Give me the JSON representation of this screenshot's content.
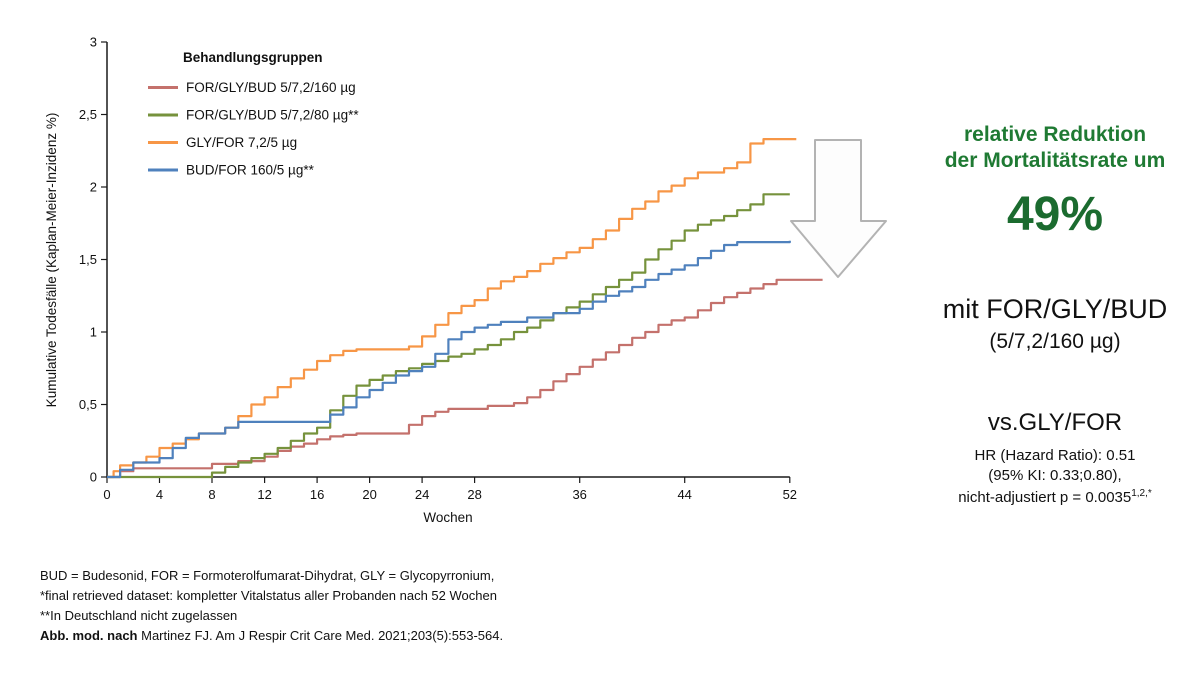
{
  "colors": {
    "accent-green": "#1f7a33",
    "pct-green": "#1b6b2f",
    "arrow-gray": "#b3b3b3",
    "series-red": "#c4716c",
    "series-green": "#76923c",
    "series-orange": "#f79646",
    "series-blue": "#4f81bd"
  },
  "chart": {
    "ylabel": "Kumulative Todesfälle (Kaplan-Meier-Inzidenz %)",
    "xlabel": "Wochen"
  },
  "chart_data": {
    "type": "line",
    "subtype": "kaplan-meier-step",
    "title": "",
    "xlabel": "Wochen",
    "ylabel": "Kumulative Todesfälle (Kaplan-Meier-Inzidenz %)",
    "xlim": [
      0,
      55
    ],
    "ylim": [
      0,
      3
    ],
    "grid": false,
    "legend_title": "Behandlungsgruppen",
    "legend_position": "top-left",
    "xticks": {
      "values": [
        0,
        4,
        8,
        12,
        16,
        20,
        24,
        28,
        36,
        44,
        52
      ],
      "labels": [
        "0",
        "4",
        "8",
        "12",
        "16",
        "20",
        "24",
        "28",
        "36",
        "44",
        "52"
      ]
    },
    "yticks": {
      "values": [
        0,
        0.5,
        1,
        1.5,
        2,
        2.5,
        3
      ],
      "labels": [
        "0",
        "0,5",
        "1",
        "1,5",
        "2",
        "2,5",
        "3"
      ]
    },
    "series": [
      {
        "id": "for-gly-bud-160",
        "name": "FOR/GLY/BUD 5/7,2/160 µg",
        "color": "#c4716c",
        "points": [
          [
            0,
            0
          ],
          [
            1,
            0.04
          ],
          [
            2,
            0.06
          ],
          [
            7,
            0.06
          ],
          [
            8,
            0.09
          ],
          [
            10,
            0.11
          ],
          [
            12,
            0.14
          ],
          [
            13,
            0.18
          ],
          [
            14,
            0.21
          ],
          [
            15,
            0.23
          ],
          [
            16,
            0.26
          ],
          [
            17,
            0.28
          ],
          [
            18,
            0.29
          ],
          [
            19,
            0.3
          ],
          [
            22,
            0.3
          ],
          [
            23,
            0.36
          ],
          [
            24,
            0.42
          ],
          [
            25,
            0.45
          ],
          [
            26,
            0.47
          ],
          [
            29,
            0.49
          ],
          [
            31,
            0.51
          ],
          [
            32,
            0.55
          ],
          [
            33,
            0.6
          ],
          [
            34,
            0.66
          ],
          [
            35,
            0.71
          ],
          [
            36,
            0.76
          ],
          [
            37,
            0.81
          ],
          [
            38,
            0.86
          ],
          [
            39,
            0.91
          ],
          [
            40,
            0.96
          ],
          [
            41,
            1.0
          ],
          [
            42,
            1.05
          ],
          [
            43,
            1.08
          ],
          [
            44,
            1.1
          ],
          [
            45,
            1.15
          ],
          [
            46,
            1.2
          ],
          [
            47,
            1.24
          ],
          [
            48,
            1.27
          ],
          [
            49,
            1.3
          ],
          [
            50,
            1.33
          ],
          [
            51,
            1.36
          ],
          [
            54.5,
            1.36
          ]
        ]
      },
      {
        "id": "for-gly-bud-80",
        "name": "FOR/GLY/BUD 5/7,2/80 µg**",
        "color": "#76923c",
        "points": [
          [
            0,
            0
          ],
          [
            8,
            0.03
          ],
          [
            9,
            0.07
          ],
          [
            10,
            0.1
          ],
          [
            11,
            0.13
          ],
          [
            12,
            0.16
          ],
          [
            13,
            0.2
          ],
          [
            14,
            0.25
          ],
          [
            15,
            0.3
          ],
          [
            16,
            0.34
          ],
          [
            17,
            0.46
          ],
          [
            18,
            0.56
          ],
          [
            19,
            0.63
          ],
          [
            20,
            0.67
          ],
          [
            21,
            0.7
          ],
          [
            22,
            0.73
          ],
          [
            23,
            0.75
          ],
          [
            24,
            0.78
          ],
          [
            25,
            0.8
          ],
          [
            26,
            0.83
          ],
          [
            27,
            0.85
          ],
          [
            28,
            0.88
          ],
          [
            29,
            0.91
          ],
          [
            30,
            0.95
          ],
          [
            31,
            1.0
          ],
          [
            32,
            1.03
          ],
          [
            33,
            1.08
          ],
          [
            34,
            1.13
          ],
          [
            35,
            1.17
          ],
          [
            36,
            1.21
          ],
          [
            37,
            1.26
          ],
          [
            38,
            1.31
          ],
          [
            39,
            1.36
          ],
          [
            40,
            1.41
          ],
          [
            41,
            1.5
          ],
          [
            42,
            1.57
          ],
          [
            43,
            1.63
          ],
          [
            44,
            1.7
          ],
          [
            45,
            1.74
          ],
          [
            46,
            1.77
          ],
          [
            47,
            1.8
          ],
          [
            48,
            1.84
          ],
          [
            49,
            1.88
          ],
          [
            50,
            1.95
          ],
          [
            52,
            1.95
          ]
        ]
      },
      {
        "id": "gly-for",
        "name": "GLY/FOR 7,2/5 µg",
        "color": "#f79646",
        "points": [
          [
            0,
            0
          ],
          [
            0.5,
            0.04
          ],
          [
            1,
            0.08
          ],
          [
            2,
            0.1
          ],
          [
            3,
            0.14
          ],
          [
            4,
            0.2
          ],
          [
            5,
            0.23
          ],
          [
            6,
            0.26
          ],
          [
            7,
            0.3
          ],
          [
            9,
            0.34
          ],
          [
            10,
            0.42
          ],
          [
            11,
            0.5
          ],
          [
            12,
            0.55
          ],
          [
            13,
            0.62
          ],
          [
            14,
            0.68
          ],
          [
            15,
            0.74
          ],
          [
            16,
            0.8
          ],
          [
            17,
            0.84
          ],
          [
            18,
            0.87
          ],
          [
            19,
            0.88
          ],
          [
            23,
            0.9
          ],
          [
            24,
            0.97
          ],
          [
            25,
            1.05
          ],
          [
            26,
            1.13
          ],
          [
            27,
            1.18
          ],
          [
            28,
            1.22
          ],
          [
            29,
            1.3
          ],
          [
            30,
            1.35
          ],
          [
            31,
            1.38
          ],
          [
            32,
            1.42
          ],
          [
            33,
            1.47
          ],
          [
            34,
            1.51
          ],
          [
            35,
            1.55
          ],
          [
            36,
            1.58
          ],
          [
            37,
            1.64
          ],
          [
            38,
            1.7
          ],
          [
            39,
            1.78
          ],
          [
            40,
            1.85
          ],
          [
            41,
            1.9
          ],
          [
            42,
            1.97
          ],
          [
            43,
            2.01
          ],
          [
            44,
            2.06
          ],
          [
            45,
            2.1
          ],
          [
            47,
            2.13
          ],
          [
            48,
            2.17
          ],
          [
            49,
            2.3
          ],
          [
            50,
            2.33
          ],
          [
            52.5,
            2.33
          ]
        ]
      },
      {
        "id": "bud-for",
        "name": "BUD/FOR 160/5 µg**",
        "color": "#4f81bd",
        "points": [
          [
            0,
            0
          ],
          [
            1,
            0.05
          ],
          [
            2,
            0.1
          ],
          [
            4,
            0.13
          ],
          [
            5,
            0.2
          ],
          [
            6,
            0.27
          ],
          [
            7,
            0.3
          ],
          [
            9,
            0.34
          ],
          [
            10,
            0.38
          ],
          [
            16,
            0.38
          ],
          [
            17,
            0.43
          ],
          [
            18,
            0.48
          ],
          [
            19,
            0.55
          ],
          [
            20,
            0.6
          ],
          [
            21,
            0.65
          ],
          [
            22,
            0.7
          ],
          [
            23,
            0.73
          ],
          [
            24,
            0.76
          ],
          [
            25,
            0.85
          ],
          [
            26,
            0.95
          ],
          [
            27,
            1.0
          ],
          [
            28,
            1.03
          ],
          [
            29,
            1.05
          ],
          [
            30,
            1.07
          ],
          [
            32,
            1.1
          ],
          [
            34,
            1.13
          ],
          [
            36,
            1.16
          ],
          [
            37,
            1.21
          ],
          [
            38,
            1.25
          ],
          [
            39,
            1.28
          ],
          [
            40,
            1.31
          ],
          [
            41,
            1.36
          ],
          [
            42,
            1.4
          ],
          [
            43,
            1.43
          ],
          [
            44,
            1.46
          ],
          [
            45,
            1.51
          ],
          [
            46,
            1.56
          ],
          [
            47,
            1.6
          ],
          [
            48,
            1.62
          ],
          [
            52,
            1.63
          ]
        ]
      }
    ]
  },
  "panel": {
    "heading_line1": "relative Reduktion",
    "heading_line2": "der Mortalitätsrate um",
    "percentage": "49%",
    "group_line1": "mit FOR/GLY/BUD",
    "group_line2": "(5/7,2/160 µg)",
    "vs_line": "vs.GLY/FOR",
    "hr_line": "HR (Hazard Ratio): 0.51",
    "ci_line": "(95% KI: 0.33;0.80),",
    "p_line": "nicht-adjustiert p = 0.0035",
    "p_sup": "1,2,*"
  },
  "footnotes": {
    "line1": "BUD = Budesonid, FOR = Formoterolfumarat-Dihydrat, GLY = Glycopyrronium,",
    "line2": "*final retrieved dataset: kompletter Vitalstatus aller Probanden nach 52 Wochen",
    "line3": "**In Deutschland nicht zugelassen",
    "line4_bold": "Abb. mod. nach",
    "line4_rest": "Martinez FJ. Am J Respir Crit Care Med. 2021;203(5):553-564."
  }
}
